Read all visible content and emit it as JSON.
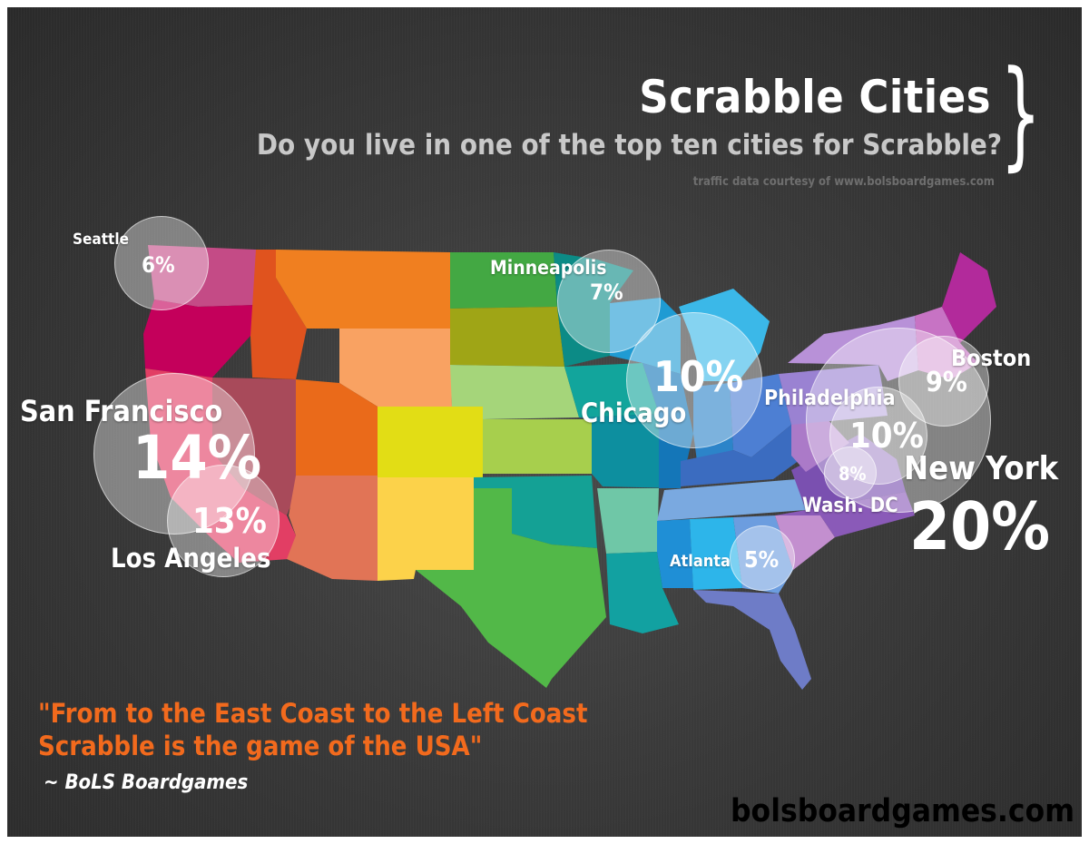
{
  "header": {
    "title": "Scrabble Cities",
    "brace": "}",
    "subtitle": "Do you live in one of the top ten cities for Scrabble?",
    "credit": "traffic data courtesy of www.bolsboardgames.com"
  },
  "cities": [
    {
      "name": "Seattle",
      "percent": "6%"
    },
    {
      "name": "Minneapolis",
      "percent": "7%"
    },
    {
      "name": "Chicago",
      "percent": "10%"
    },
    {
      "name": "Boston",
      "percent": "9%"
    },
    {
      "name": "Philadelphia",
      "percent": "10%"
    },
    {
      "name": "Wash. DC",
      "percent": "8%"
    },
    {
      "name": "New York",
      "percent": "20%"
    },
    {
      "name": "Atlanta",
      "percent": "5%"
    },
    {
      "name": "San Francisco",
      "percent": "14%"
    },
    {
      "name": "Los Angeles",
      "percent": "13%"
    }
  ],
  "quote": {
    "line1": "\"From to the East Coast to the Left Coast",
    "line2": "Scrabble is the game of the USA\"",
    "attribution": "~ BoLS Boardgames"
  },
  "footer": {
    "site": "bolsboardgames.com"
  },
  "colors": {
    "quote": "#f26a1d",
    "bubble": "rgba(255,255,255,0.38)",
    "background": "#3a3a3a"
  }
}
